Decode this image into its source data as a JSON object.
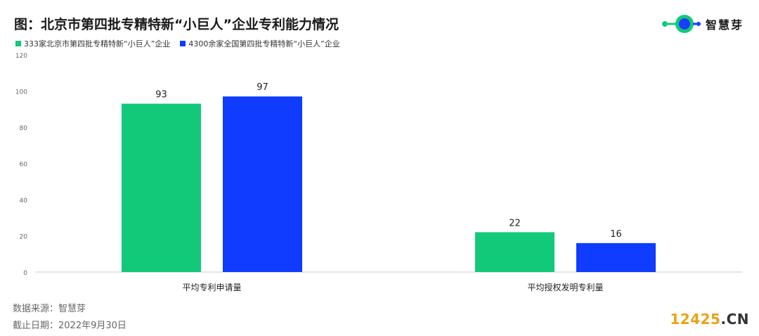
{
  "title": "图：北京市第四批专精特新“小巨人”企业专利能力情况",
  "brand": {
    "name": "智慧芽",
    "icon": "zhihuiya-logo-icon",
    "colors": {
      "green": "#12c97a",
      "blue": "#1a3cff"
    }
  },
  "legend": [
    {
      "label": "333家北京市第四批专精特新“小巨人”企业",
      "color": "#12c97a"
    },
    {
      "label": "4300余家全国第四批专精特新“小巨人”企业",
      "color": "#0f3cff"
    }
  ],
  "chart_data": {
    "type": "bar",
    "categories": [
      "平均专利申请量",
      "平均授权发明专利量"
    ],
    "series": [
      {
        "name": "333家北京市第四批专精特新“小巨人”企业",
        "color": "#12c97a",
        "values": [
          93,
          22
        ]
      },
      {
        "name": "4300余家全国第四批专精特新“小巨人”企业",
        "color": "#0f3cff",
        "values": [
          97,
          16
        ]
      }
    ],
    "ylim": [
      0,
      120
    ],
    "yticks": [
      0,
      20,
      40,
      60,
      80,
      100,
      120
    ],
    "grid": false,
    "legend_position": "top-left",
    "data_labels": true
  },
  "footnotes": {
    "source": "数据来源：智慧芽",
    "date": "截止日期：2022年9月30日"
  },
  "watermark": {
    "main": "12425",
    "suffix": ".CN",
    "main_color": "#e8a317",
    "suffix_color": "#333333"
  }
}
